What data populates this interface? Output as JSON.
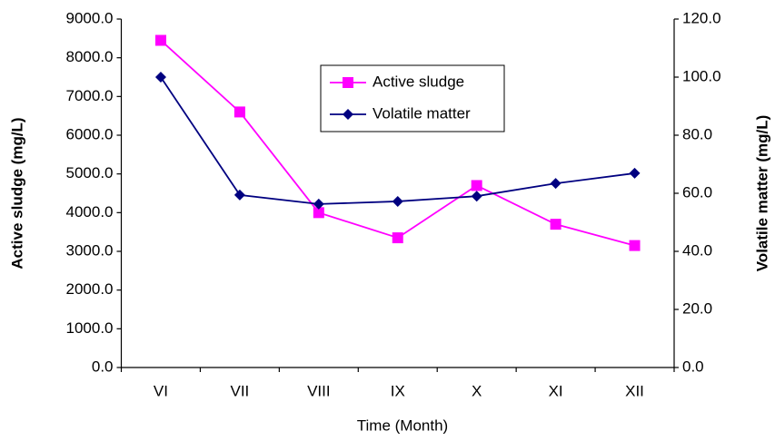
{
  "chart_data": {
    "type": "line",
    "x_label": "Time (Month)",
    "y_label": "Active sludge (mg/L)",
    "y2_label": "Volatile matter (mg/L)",
    "categories": [
      "VI",
      "VII",
      "VIII",
      "IX",
      "X",
      "XI",
      "XII"
    ],
    "series": [
      {
        "name": "Active sludge",
        "color": "#ff00ff",
        "marker": "square",
        "values": [
          8450,
          6600,
          4000,
          3350,
          4700,
          3700,
          3150
        ]
      },
      {
        "name": "Volatile matter",
        "color": "#000080",
        "marker": "diamond",
        "axis": "y2",
        "values": [
          100,
          59.4,
          56.3,
          57.2,
          59,
          63.4,
          66.9
        ]
      }
    ],
    "ylim": [
      0,
      9000
    ],
    "yticks": [
      {
        "value": 0,
        "label": "0.0"
      },
      {
        "value": 1000,
        "label": "1000.0"
      },
      {
        "value": 2000,
        "label": "2000.0"
      },
      {
        "value": 3000,
        "label": "3000.0"
      },
      {
        "value": 4000,
        "label": "4000.0"
      },
      {
        "value": 5000,
        "label": "5000.0"
      },
      {
        "value": 6000,
        "label": "6000.0"
      },
      {
        "value": 7000,
        "label": "7000.0"
      },
      {
        "value": 8000,
        "label": "8000.0"
      },
      {
        "value": 9000,
        "label": "9000.0"
      }
    ],
    "y2lim": [
      0,
      120
    ],
    "y2ticks": [
      {
        "value": 0,
        "label": "0.0"
      },
      {
        "value": 20,
        "label": "20.0"
      },
      {
        "value": 40,
        "label": "40.0"
      },
      {
        "value": 60,
        "label": "60.0"
      },
      {
        "value": 80,
        "label": "80.0"
      },
      {
        "value": 100,
        "label": "100.0"
      },
      {
        "value": 120,
        "label": "120.0"
      }
    ],
    "grid": false
  }
}
